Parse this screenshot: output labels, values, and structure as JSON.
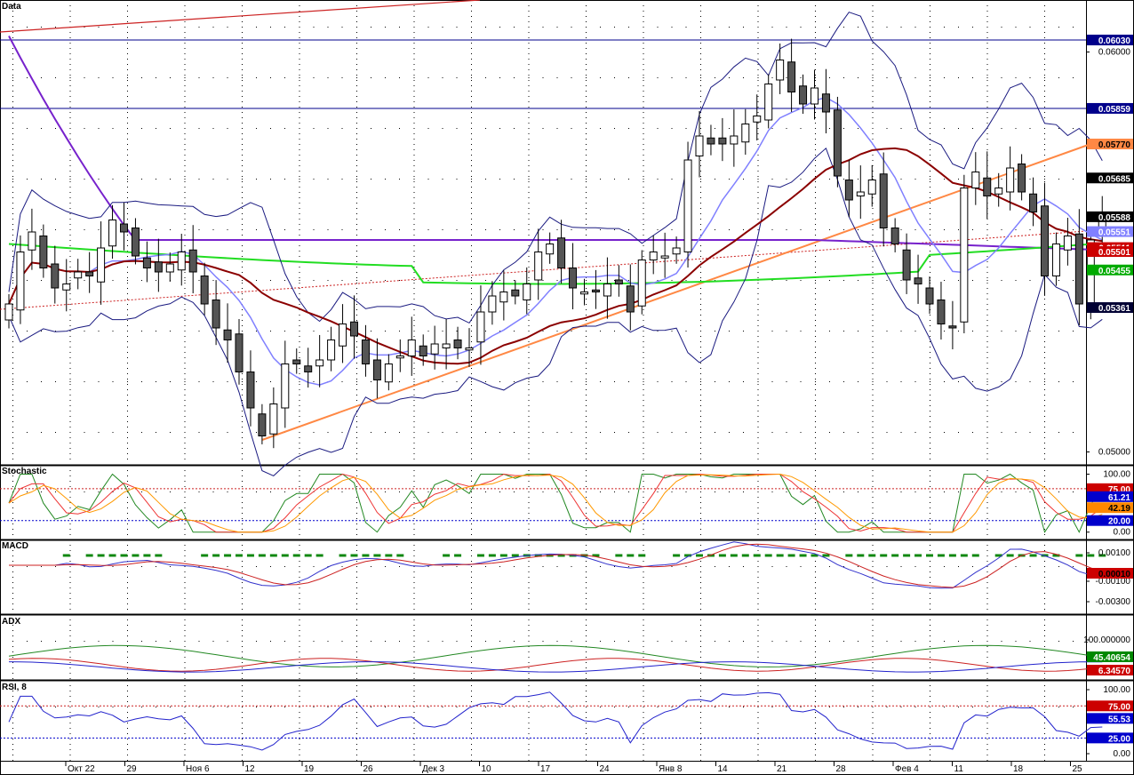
{
  "panels": {
    "price": "Data",
    "stochastic": "Stochastic",
    "macd": "MACD",
    "adx": "ADX",
    "rsi": "RSI, 8"
  },
  "colors": {
    "up_candle": "#ffffff",
    "down_candle": "#555555",
    "bollinger": "#1a1a80",
    "ma_fast": "#8080ff",
    "ma_mid": "#8b0000",
    "ma_green": "#22dd22",
    "ma_purple": "#7722cc",
    "trend_orange": "#ff8844",
    "hline": "#00008b",
    "red_line": "#cc2222"
  },
  "chart_data": [
    {
      "type": "candlestick",
      "panel": "price",
      "title": "Data",
      "x_tick_labels": [
        "Окт 22",
        "29",
        "Ноя 6",
        "12",
        "19",
        "26",
        "Дек 3",
        "10",
        "17",
        "24",
        "Янв 8",
        "14",
        "21",
        "28",
        "Фев 4",
        "11",
        "18",
        "25"
      ],
      "y_tick_labels": [
        "0.06000",
        "0.05000"
      ],
      "ylim": [
        0.0497,
        0.0613
      ],
      "horizontal_lines": [
        0.0603,
        0.05859
      ],
      "price_tags": [
        {
          "label": "0.06030",
          "value": 0.0603,
          "bg": "#00008b",
          "fg": "#ffffff"
        },
        {
          "label": "0.05859",
          "value": 0.05859,
          "bg": "#00008b",
          "fg": "#ffffff"
        },
        {
          "label": "0.05770",
          "value": 0.0577,
          "bg": "#ff8844",
          "fg": "#000000"
        },
        {
          "label": "0.05685",
          "value": 0.05685,
          "bg": "#000000",
          "fg": "#ffffff"
        },
        {
          "label": "0.05588",
          "value": 0.05588,
          "bg": "#000000",
          "fg": "#ffffff"
        },
        {
          "label": "0.05551",
          "value": 0.05551,
          "bg": "#8080ff",
          "fg": "#ffffff"
        },
        {
          "label": "0.05511",
          "value": 0.05511,
          "bg": "#cc0000",
          "fg": "#ffffff"
        },
        {
          "label": "0.05501",
          "value": 0.05501,
          "bg": "#cc0000",
          "fg": "#ffffff"
        },
        {
          "label": "0.05455",
          "value": 0.05455,
          "bg": "#00aa00",
          "fg": "#ffffff"
        },
        {
          "label": "0.05361",
          "value": 0.05361,
          "bg": "#000033",
          "fg": "#ffffff"
        }
      ],
      "closes": [
        0.0537,
        0.055,
        0.0555,
        0.0546,
        0.0541,
        0.0542,
        0.0545,
        0.0544,
        0.0551,
        0.0558,
        0.0555,
        0.0549,
        0.0546,
        0.0545,
        0.0547,
        0.055,
        0.0545,
        0.0537,
        0.0531,
        0.0528,
        0.052,
        0.0511,
        0.0504,
        0.0512,
        0.0522,
        0.0522,
        0.052,
        0.0523,
        0.0528,
        0.0532,
        0.0529,
        0.0522,
        0.0518,
        0.0522,
        0.0524,
        0.0528,
        0.0524,
        0.0527,
        0.0527,
        0.0526,
        0.0526,
        0.0535,
        0.0539,
        0.054,
        0.0539,
        0.0542,
        0.055,
        0.0552,
        0.0546,
        0.0541,
        0.054,
        0.054,
        0.0542,
        0.0542,
        0.0535,
        0.0548,
        0.055,
        0.0549,
        0.0551,
        0.0573,
        0.0579,
        0.0577,
        0.0577,
        0.0579,
        0.0582,
        0.0584,
        0.0592,
        0.0598,
        0.059,
        0.0587,
        0.0591,
        0.0585,
        0.0569,
        0.0563,
        0.0565,
        0.0568,
        0.0556,
        0.0552,
        0.0543,
        0.0542,
        0.0537,
        0.0532,
        0.0531,
        0.0566,
        0.057,
        0.0564,
        0.0566,
        0.0571,
        0.0565,
        0.056,
        0.0544,
        0.0552,
        0.0554,
        0.0537,
        0.0553,
        0.0559
      ],
      "moving_averages": [
        {
          "name": "ma_fast"
        },
        {
          "name": "ma_mid"
        },
        {
          "name": "ma_green"
        },
        {
          "name": "ma_purple"
        }
      ]
    },
    {
      "type": "line",
      "panel": "stochastic",
      "y_tick_labels": [
        "100.00",
        "0.00"
      ],
      "levels": [
        75,
        20
      ],
      "level_tags": [
        {
          "label": "75.00",
          "value": 75,
          "bg": "#cc0000",
          "fg": "#ffffff"
        },
        {
          "label": "61.21",
          "value": 61.21,
          "bg": "#0000cc",
          "fg": "#ffffff"
        },
        {
          "label": "42.19",
          "value": 42.19,
          "bg": "#ff8800",
          "fg": "#000000"
        },
        {
          "label": "20.00",
          "value": 20,
          "bg": "#0000cc",
          "fg": "#ffffff"
        }
      ],
      "ylim": [
        -5,
        110
      ]
    },
    {
      "type": "line",
      "panel": "macd",
      "y_tick_labels": [
        "0.00100",
        "-0.00100",
        "-0.00300"
      ],
      "tags": [
        {
          "label": "0.00010",
          "value": 0.0001,
          "bg": "#cc0000",
          "fg": "#000000"
        }
      ],
      "ylim": [
        -0.0038,
        0.0019
      ]
    },
    {
      "type": "line",
      "panel": "adx",
      "y_tick_labels": [
        "100.000000"
      ],
      "tags": [
        {
          "label": "45.40654",
          "value": 45.4,
          "bg": "#008800",
          "fg": "#ffffff"
        },
        {
          "label": "6.34570",
          "value": 6.3,
          "bg": "#cc0000",
          "fg": "#ffffff"
        }
      ],
      "ylim": [
        -5,
        130
      ]
    },
    {
      "type": "line",
      "panel": "rsi",
      "title": "RSI, 8",
      "y_tick_labels": [
        "100.00",
        "0.00"
      ],
      "levels": [
        75,
        25
      ],
      "level_tags": [
        {
          "label": "75.00",
          "value": 75,
          "bg": "#cc0000",
          "fg": "#ffffff"
        },
        {
          "label": "55.53",
          "value": 55.53,
          "bg": "#0000cc",
          "fg": "#ffffff"
        },
        {
          "label": "25.00",
          "value": 25,
          "bg": "#0000cc",
          "fg": "#ffffff"
        }
      ],
      "ylim": [
        -5,
        110
      ]
    }
  ]
}
